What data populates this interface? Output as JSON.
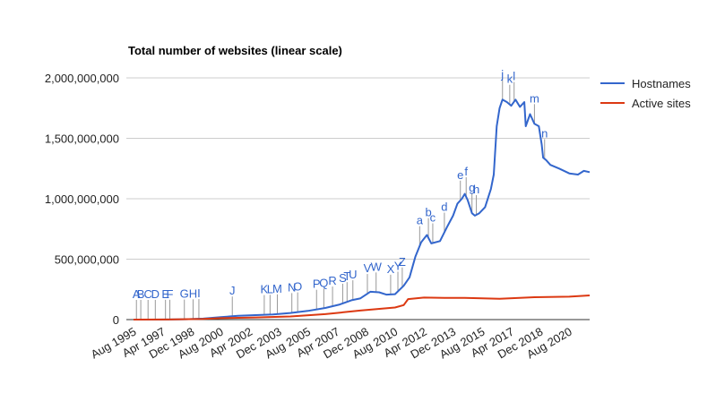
{
  "chart_data": {
    "type": "line",
    "title": "Total number of websites (linear scale)",
    "xlabel": "",
    "ylabel": "",
    "x_domain": [
      "1995-08",
      "2021-10"
    ],
    "ylim": [
      0,
      2000000000
    ],
    "y_ticks": [
      0,
      500000000,
      1000000000,
      1500000000,
      2000000000
    ],
    "y_tick_labels": [
      "0",
      "500,000,000",
      "1,000,000,000",
      "1,500,000,000",
      "2,000,000,000"
    ],
    "x_ticks": [
      "1995-08",
      "1997-04",
      "1998-12",
      "2000-08",
      "2002-04",
      "2003-12",
      "2005-08",
      "2007-04",
      "2008-12",
      "2010-08",
      "2012-04",
      "2013-12",
      "2015-08",
      "2017-04",
      "2018-12",
      "2020-08"
    ],
    "x_tick_labels": [
      "Aug 1995",
      "Apr 1997",
      "Dec 1998",
      "Aug 2000",
      "Apr 2002",
      "Dec 2003",
      "Aug 2005",
      "Apr 2007",
      "Dec 2008",
      "Aug 2010",
      "Apr 2012",
      "Dec 2013",
      "Aug 2015",
      "Apr 2017",
      "Dec 2018",
      "Aug 2020"
    ],
    "grid": true,
    "legend_position": "right",
    "series": [
      {
        "name": "Hostnames",
        "color": "#3366cc",
        "points": [
          [
            "1995-08",
            0
          ],
          [
            "1996-08",
            100000
          ],
          [
            "1997-08",
            1000000
          ],
          [
            "1998-08",
            3000000
          ],
          [
            "1999-08",
            8000000
          ],
          [
            "2000-08",
            20000000
          ],
          [
            "2001-08",
            32000000
          ],
          [
            "2002-08",
            37000000
          ],
          [
            "2003-08",
            43000000
          ],
          [
            "2004-08",
            55000000
          ],
          [
            "2005-08",
            72000000
          ],
          [
            "2006-08",
            96000000
          ],
          [
            "2007-06",
            125000000
          ],
          [
            "2008-02",
            160000000
          ],
          [
            "2008-08",
            175000000
          ],
          [
            "2009-03",
            230000000
          ],
          [
            "2009-09",
            226000000
          ],
          [
            "2010-02",
            207000000
          ],
          [
            "2010-08",
            210000000
          ],
          [
            "2011-02",
            280000000
          ],
          [
            "2011-06",
            350000000
          ],
          [
            "2011-10",
            520000000
          ],
          [
            "2012-02",
            640000000
          ],
          [
            "2012-06",
            700000000
          ],
          [
            "2012-09",
            630000000
          ],
          [
            "2013-03",
            650000000
          ],
          [
            "2013-08",
            770000000
          ],
          [
            "2013-12",
            860000000
          ],
          [
            "2014-03",
            960000000
          ],
          [
            "2014-06",
            1000000000
          ],
          [
            "2014-08",
            1040000000
          ],
          [
            "2014-10",
            990000000
          ],
          [
            "2015-01",
            880000000
          ],
          [
            "2015-03",
            860000000
          ],
          [
            "2015-06",
            880000000
          ],
          [
            "2015-10",
            930000000
          ],
          [
            "2016-02",
            1080000000
          ],
          [
            "2016-04",
            1200000000
          ],
          [
            "2016-06",
            1600000000
          ],
          [
            "2016-08",
            1750000000
          ],
          [
            "2016-10",
            1820000000
          ],
          [
            "2017-01",
            1800000000
          ],
          [
            "2017-04",
            1770000000
          ],
          [
            "2017-07",
            1820000000
          ],
          [
            "2017-10",
            1760000000
          ],
          [
            "2018-01",
            1800000000
          ],
          [
            "2018-02",
            1600000000
          ],
          [
            "2018-05",
            1700000000
          ],
          [
            "2018-08",
            1620000000
          ],
          [
            "2018-11",
            1600000000
          ],
          [
            "2019-01",
            1450000000
          ],
          [
            "2019-02",
            1340000000
          ],
          [
            "2019-04",
            1320000000
          ],
          [
            "2019-07",
            1280000000
          ],
          [
            "2020-01",
            1250000000
          ],
          [
            "2020-08",
            1210000000
          ],
          [
            "2021-02",
            1200000000
          ],
          [
            "2021-06",
            1230000000
          ],
          [
            "2021-10",
            1220000000
          ]
        ]
      },
      {
        "name": "Active sites",
        "color": "#dc3912",
        "points": [
          [
            "1995-08",
            0
          ],
          [
            "1997-08",
            500000
          ],
          [
            "1999-08",
            5000000
          ],
          [
            "2000-08",
            12000000
          ],
          [
            "2002-08",
            18000000
          ],
          [
            "2004-08",
            26000000
          ],
          [
            "2006-08",
            45000000
          ],
          [
            "2008-08",
            75000000
          ],
          [
            "2010-08",
            100000000
          ],
          [
            "2011-02",
            120000000
          ],
          [
            "2011-05",
            170000000
          ],
          [
            "2012-04",
            182000000
          ],
          [
            "2013-06",
            180000000
          ],
          [
            "2014-08",
            180000000
          ],
          [
            "2016-08",
            172000000
          ],
          [
            "2018-08",
            185000000
          ],
          [
            "2020-08",
            190000000
          ],
          [
            "2021-10",
            200000000
          ]
        ]
      }
    ],
    "annotations": [
      {
        "label": "A",
        "x": "1995-10",
        "color": "#3366cc"
      },
      {
        "label": "B",
        "x": "1996-01",
        "color": "#3366cc"
      },
      {
        "label": "C",
        "x": "1996-06",
        "color": "#3366cc"
      },
      {
        "label": "D",
        "x": "1996-11",
        "color": "#3366cc"
      },
      {
        "label": "E",
        "x": "1997-06",
        "color": "#3366cc"
      },
      {
        "label": "F",
        "x": "1997-09",
        "color": "#3366cc"
      },
      {
        "label": "G",
        "x": "1998-07",
        "color": "#3366cc"
      },
      {
        "label": "H",
        "x": "1999-01",
        "color": "#3366cc"
      },
      {
        "label": "I",
        "x": "1999-05",
        "color": "#3366cc"
      },
      {
        "label": "J",
        "x": "2001-04",
        "color": "#3366cc"
      },
      {
        "label": "K",
        "x": "2003-02",
        "color": "#3366cc"
      },
      {
        "label": "L",
        "x": "2003-06",
        "color": "#3366cc"
      },
      {
        "label": "M",
        "x": "2003-11",
        "color": "#3366cc"
      },
      {
        "label": "N",
        "x": "2004-09",
        "color": "#3366cc"
      },
      {
        "label": "O",
        "x": "2005-01",
        "color": "#3366cc"
      },
      {
        "label": "P",
        "x": "2006-02",
        "color": "#3366cc"
      },
      {
        "label": "Q",
        "x": "2006-07",
        "color": "#3366cc"
      },
      {
        "label": "R",
        "x": "2007-01",
        "color": "#3366cc"
      },
      {
        "label": "S",
        "x": "2007-08",
        "color": "#3366cc"
      },
      {
        "label": "T",
        "x": "2007-11",
        "color": "#3366cc"
      },
      {
        "label": "U",
        "x": "2008-03",
        "color": "#3366cc"
      },
      {
        "label": "V",
        "x": "2009-01",
        "color": "#3366cc"
      },
      {
        "label": "W",
        "x": "2009-07",
        "color": "#3366cc"
      },
      {
        "label": "X",
        "x": "2010-05",
        "color": "#3366cc"
      },
      {
        "label": "Y",
        "x": "2010-10",
        "color": "#3366cc"
      },
      {
        "label": "Z",
        "x": "2011-01",
        "color": "#3366cc"
      },
      {
        "label": "a",
        "x": "2012-01",
        "color": "#3366cc"
      },
      {
        "label": "b",
        "x": "2012-07",
        "color": "#3366cc"
      },
      {
        "label": "c",
        "x": "2012-10",
        "color": "#3366cc"
      },
      {
        "label": "d",
        "x": "2013-06",
        "color": "#3366cc"
      },
      {
        "label": "e",
        "x": "2014-05",
        "color": "#3366cc"
      },
      {
        "label": "f",
        "x": "2014-09",
        "color": "#3366cc"
      },
      {
        "label": "g",
        "x": "2015-01",
        "color": "#3366cc"
      },
      {
        "label": "h",
        "x": "2015-04",
        "color": "#3366cc"
      },
      {
        "label": "j",
        "x": "2016-10",
        "color": "#3366cc"
      },
      {
        "label": "k",
        "x": "2017-03",
        "color": "#3366cc"
      },
      {
        "label": "l",
        "x": "2017-06",
        "color": "#3366cc"
      },
      {
        "label": "m",
        "x": "2018-08",
        "color": "#3366cc"
      },
      {
        "label": "n",
        "x": "2019-03",
        "color": "#3366cc"
      }
    ]
  }
}
